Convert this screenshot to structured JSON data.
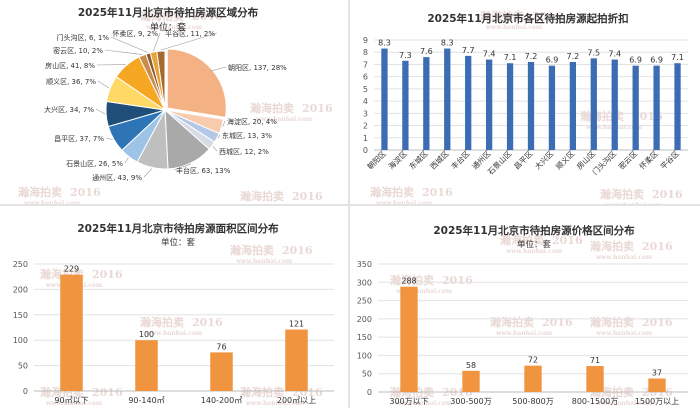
{
  "watermark": {
    "text": "瀚海拍卖",
    "year": "2016",
    "url": "www.hanhai.com"
  },
  "chart_data": [
    {
      "type": "pie",
      "title": "2025年11月北京市待拍房源区域分布",
      "subtitle": "单位：套",
      "slices": [
        {
          "label": "朝阳区, 137, 28%",
          "value": 137,
          "color": "#f4b183"
        },
        {
          "label": "海淀区, 20, 4%",
          "value": 20,
          "color": "#f8cbad"
        },
        {
          "label": "东城区, 13, 3%",
          "value": 13,
          "color": "#b4c7e7"
        },
        {
          "label": "西城区, 12, 2%",
          "value": 12,
          "color": "#d6dce5"
        },
        {
          "label": "丰台区, 63, 13%",
          "value": 63,
          "color": "#a9a9a9"
        },
        {
          "label": "通州区, 43, 9%",
          "value": 43,
          "color": "#bfbfbf"
        },
        {
          "label": "石景山区, 26, 5%",
          "value": 26,
          "color": "#9dc3e6"
        },
        {
          "label": "昌平区, 37, 7%",
          "value": 37,
          "color": "#2e75b6"
        },
        {
          "label": "大兴区, 34, 7%",
          "value": 34,
          "color": "#1f4e79"
        },
        {
          "label": "顺义区, 36, 7%",
          "value": 36,
          "color": "#ffd966"
        },
        {
          "label": "房山区, 41, 8%",
          "value": 41,
          "color": "#f5a623"
        },
        {
          "label": "密云区, 10, 2%",
          "value": 10,
          "color": "#c98b4e"
        },
        {
          "label": "门头沟区, 6, 1%",
          "value": 6,
          "color": "#8c5a2e"
        },
        {
          "label": "怀柔区, 9, 2%",
          "value": 9,
          "color": "#e8a33b"
        },
        {
          "label": "平谷区, 11, 2%",
          "value": 11,
          "color": "#a56a2c"
        }
      ]
    },
    {
      "type": "bar",
      "title": "2025年11月北京市各区待拍房源起拍折扣",
      "categories": [
        "朝阳区",
        "海淀区",
        "东城区",
        "西城区",
        "丰台区",
        "通州区",
        "石景山区",
        "昌平区",
        "大兴区",
        "顺义区",
        "房山区",
        "门头沟区",
        "密云区",
        "怀柔区",
        "平谷区"
      ],
      "values": [
        8.3,
        7.3,
        7.6,
        8.3,
        7.7,
        7.4,
        7.1,
        7.2,
        6.9,
        7.2,
        7.5,
        7.4,
        6.9,
        6.9,
        7.1
      ],
      "ylim": [
        0,
        9
      ],
      "yticks": [
        "0",
        "1",
        "2",
        "3",
        "4",
        "5",
        "6",
        "7",
        "8",
        "9"
      ],
      "color": "#3b6cb4",
      "grid": true
    },
    {
      "type": "bar",
      "title": "2025年11月北京市待拍房源面积区间分布",
      "subtitle": "单位：套",
      "categories": [
        "90㎡以下",
        "90-140㎡",
        "140-200㎡",
        "200㎡以上"
      ],
      "values": [
        229,
        100,
        76,
        121
      ],
      "ylim": [
        0,
        250
      ],
      "yticks": [
        "0",
        "50",
        "100",
        "150",
        "200",
        "250"
      ],
      "color": "#f0943f",
      "grid": true
    },
    {
      "type": "bar",
      "title": "2025年11月北京市待拍房源价格区间分布",
      "subtitle": "单位：套",
      "categories": [
        "300万以下",
        "300-500万",
        "500-800万",
        "800-1500万",
        "1500万以上"
      ],
      "values": [
        288,
        58,
        72,
        71,
        37
      ],
      "ylim": [
        0,
        350
      ],
      "yticks": [
        "0",
        "50",
        "100",
        "150",
        "200",
        "250",
        "300",
        "350"
      ],
      "color": "#f0943f",
      "grid": true
    }
  ]
}
